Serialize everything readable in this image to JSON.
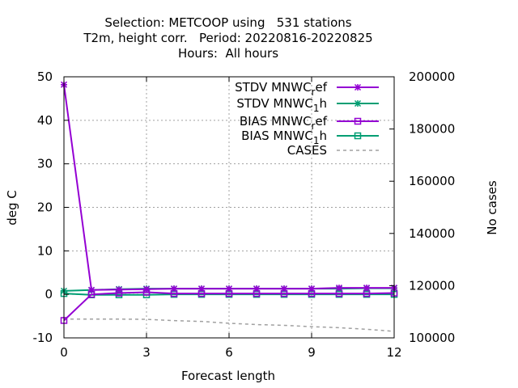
{
  "chart_data": {
    "type": "line",
    "title_lines": [
      "Selection: METCOOP using   531 stations",
      "T2m, height corr.   Period: 20220816-20220825",
      "Hours:  All hours"
    ],
    "xlabel": "Forecast length",
    "ylabel": "deg C",
    "y2label": "No cases",
    "xlim": [
      0,
      12
    ],
    "ylim": [
      -10,
      50
    ],
    "y2lim": [
      100000,
      200000
    ],
    "xticks": [
      0,
      3,
      6,
      9,
      12
    ],
    "yticks": [
      -10,
      0,
      10,
      20,
      30,
      40,
      50
    ],
    "y2ticks": [
      100000,
      120000,
      140000,
      160000,
      180000,
      200000
    ],
    "grid": true,
    "legend_position": "top-right",
    "x": [
      0,
      1,
      2,
      3,
      4,
      5,
      6,
      7,
      8,
      9,
      10,
      11,
      12
    ],
    "series": [
      {
        "name": "STDV MNWC_ref",
        "legend_main": "STDV MNWC",
        "legend_sub": "r",
        "legend_tail": "ef",
        "color": "#9400d3",
        "marker": "star",
        "axis": "y1",
        "values": [
          48.2,
          1.0,
          1.1,
          1.2,
          1.3,
          1.3,
          1.3,
          1.3,
          1.3,
          1.3,
          1.5,
          1.5,
          1.5
        ]
      },
      {
        "name": "STDV MNWC_1h",
        "legend_main": "STDV MNWC",
        "legend_sub": "1",
        "legend_tail": "h",
        "color": "#009e73",
        "marker": "star",
        "axis": "y1",
        "values": [
          0.8,
          1.0,
          1.2,
          1.3,
          1.3,
          1.3,
          1.3,
          1.3,
          1.3,
          1.3,
          1.3,
          1.4,
          1.4
        ]
      },
      {
        "name": "BIAS MNWC_ref",
        "legend_main": "BIAS MNWC",
        "legend_sub": "r",
        "legend_tail": "ef",
        "color": "#9400d3",
        "marker": "square",
        "axis": "y1",
        "values": [
          -6.0,
          0.0,
          0.3,
          0.5,
          0.2,
          0.2,
          0.2,
          0.2,
          0.2,
          0.2,
          0.2,
          0.2,
          0.3
        ]
      },
      {
        "name": "BIAS MNWC_1h",
        "legend_main": "BIAS MNWC",
        "legend_sub": "1",
        "legend_tail": "h",
        "color": "#009e73",
        "marker": "square",
        "axis": "y1",
        "values": [
          0.2,
          -0.1,
          -0.1,
          -0.1,
          0.0,
          0.0,
          0.0,
          0.0,
          0.0,
          0.0,
          0.0,
          0.0,
          0.0
        ]
      },
      {
        "name": "CASES",
        "legend_main": "CASES",
        "legend_sub": "",
        "legend_tail": "",
        "color": "#a0a0a0",
        "marker": "none",
        "dashed": true,
        "axis": "y2",
        "values": [
          107200,
          107200,
          107200,
          107100,
          106600,
          106300,
          105600,
          105100,
          104800,
          104300,
          103900,
          103300,
          102500
        ]
      }
    ]
  }
}
